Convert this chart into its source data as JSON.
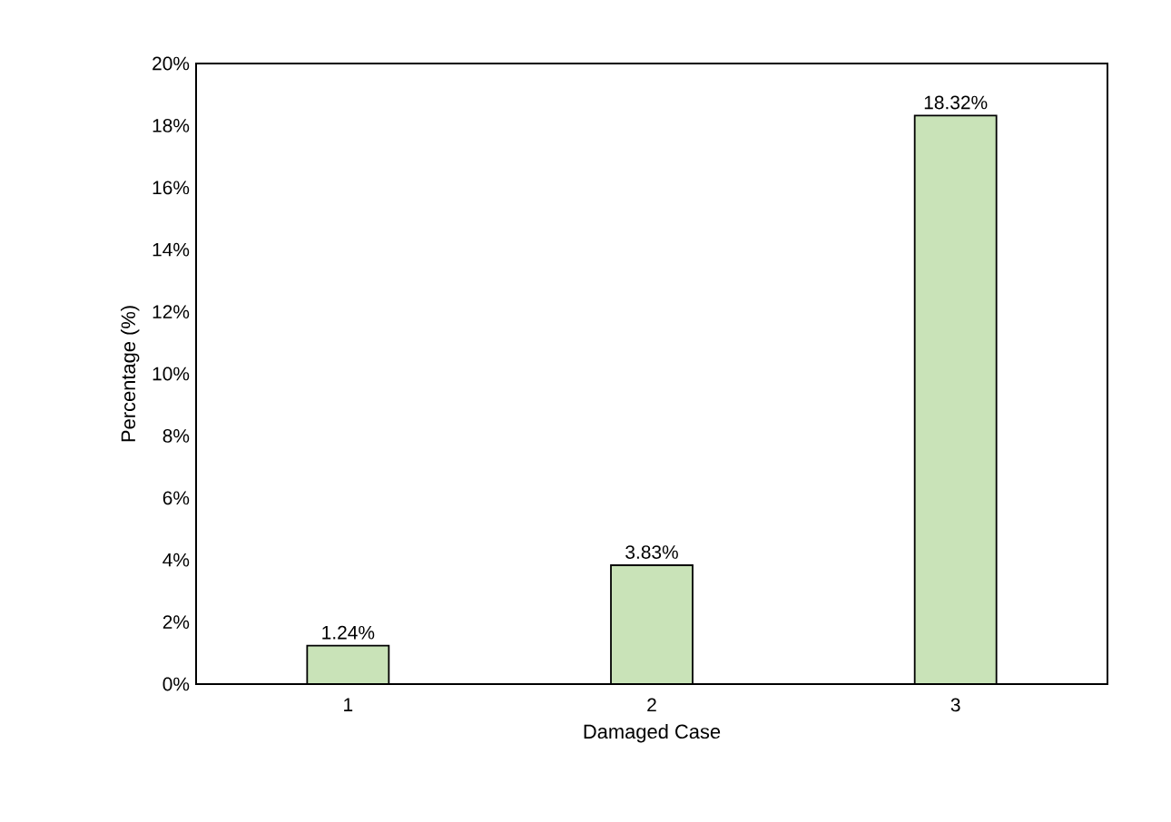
{
  "chart_data": {
    "type": "bar",
    "xlabel": "Damaged Case",
    "ylabel": "Percentage (%)",
    "categories": [
      "1",
      "2",
      "3"
    ],
    "values": [
      1.24,
      3.83,
      18.32
    ],
    "value_labels": [
      "1.24%",
      "3.83%",
      "18.32%"
    ],
    "color": "#c9e3b8",
    "ylim": [
      0,
      20
    ],
    "yticks": [
      {
        "value": 0,
        "label": "0%"
      },
      {
        "value": 2,
        "label": "2%"
      },
      {
        "value": 4,
        "label": "4%"
      },
      {
        "value": 6,
        "label": "6%"
      },
      {
        "value": 8,
        "label": "8%"
      },
      {
        "value": 10,
        "label": "10%"
      },
      {
        "value": 12,
        "label": "12%"
      },
      {
        "value": 14,
        "label": "14%"
      },
      {
        "value": 16,
        "label": "16%"
      },
      {
        "value": 18,
        "label": "18%"
      },
      {
        "value": 20,
        "label": "20%"
      }
    ]
  }
}
